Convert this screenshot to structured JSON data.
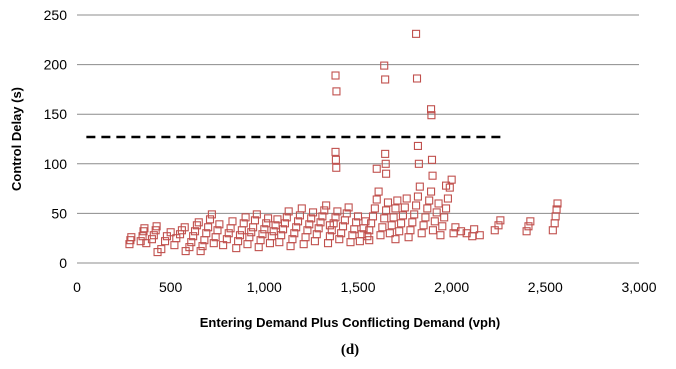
{
  "chart_data": {
    "type": "scatter",
    "xlabel": "Entering  Demand Plus Conflicting Demand (vph)",
    "ylabel": "Control Delay (s)",
    "panel_label": "(d)",
    "xlim": [
      0,
      3000
    ],
    "ylim": [
      0,
      250
    ],
    "x_ticks": [
      0,
      500,
      1000,
      1500,
      2000,
      2500,
      3000
    ],
    "x_tick_labels": [
      "0",
      "500",
      "1,000",
      "1,500",
      "2,000",
      "2,500",
      "3,000"
    ],
    "y_ticks": [
      0,
      50,
      100,
      150,
      200,
      250
    ],
    "y_tick_labels": [
      "0",
      "50",
      "100",
      "150",
      "200",
      "250"
    ],
    "grid": "horizontal",
    "marker": "open-square",
    "marker_color": "#c0504d",
    "threshold_line": {
      "y": 127,
      "x_start": 50,
      "x_end": 2260,
      "color": "#000000",
      "style": "dashed"
    },
    "points": [
      [
        280,
        19
      ],
      [
        285,
        23
      ],
      [
        290,
        26
      ],
      [
        340,
        22
      ],
      [
        350,
        27
      ],
      [
        355,
        32
      ],
      [
        360,
        35
      ],
      [
        370,
        20
      ],
      [
        400,
        24
      ],
      [
        410,
        28
      ],
      [
        420,
        33
      ],
      [
        425,
        37
      ],
      [
        430,
        11
      ],
      [
        450,
        14
      ],
      [
        470,
        22
      ],
      [
        480,
        27
      ],
      [
        500,
        31
      ],
      [
        520,
        18
      ],
      [
        530,
        25
      ],
      [
        550,
        29
      ],
      [
        560,
        33
      ],
      [
        575,
        36
      ],
      [
        580,
        12
      ],
      [
        600,
        16
      ],
      [
        610,
        21
      ],
      [
        620,
        27
      ],
      [
        630,
        32
      ],
      [
        640,
        38
      ],
      [
        650,
        41
      ],
      [
        660,
        12
      ],
      [
        670,
        17
      ],
      [
        680,
        23
      ],
      [
        690,
        30
      ],
      [
        700,
        36
      ],
      [
        710,
        44
      ],
      [
        720,
        49
      ],
      [
        730,
        20
      ],
      [
        740,
        26
      ],
      [
        750,
        33
      ],
      [
        760,
        39
      ],
      [
        780,
        18
      ],
      [
        800,
        24
      ],
      [
        810,
        30
      ],
      [
        820,
        35
      ],
      [
        830,
        42
      ],
      [
        850,
        15
      ],
      [
        860,
        22
      ],
      [
        870,
        28
      ],
      [
        880,
        33
      ],
      [
        890,
        40
      ],
      [
        900,
        46
      ],
      [
        910,
        19
      ],
      [
        920,
        26
      ],
      [
        930,
        31
      ],
      [
        940,
        36
      ],
      [
        950,
        43
      ],
      [
        960,
        49
      ],
      [
        970,
        16
      ],
      [
        980,
        23
      ],
      [
        990,
        29
      ],
      [
        1000,
        34
      ],
      [
        1010,
        40
      ],
      [
        1020,
        45
      ],
      [
        1030,
        20
      ],
      [
        1040,
        27
      ],
      [
        1050,
        32
      ],
      [
        1060,
        38
      ],
      [
        1070,
        44
      ],
      [
        1080,
        21
      ],
      [
        1090,
        28
      ],
      [
        1100,
        34
      ],
      [
        1110,
        40
      ],
      [
        1120,
        46
      ],
      [
        1130,
        52
      ],
      [
        1140,
        17
      ],
      [
        1150,
        24
      ],
      [
        1160,
        30
      ],
      [
        1170,
        36
      ],
      [
        1180,
        42
      ],
      [
        1190,
        48
      ],
      [
        1200,
        55
      ],
      [
        1210,
        19
      ],
      [
        1220,
        26
      ],
      [
        1230,
        33
      ],
      [
        1240,
        39
      ],
      [
        1250,
        45
      ],
      [
        1260,
        51
      ],
      [
        1270,
        22
      ],
      [
        1280,
        29
      ],
      [
        1290,
        35
      ],
      [
        1300,
        41
      ],
      [
        1310,
        47
      ],
      [
        1320,
        53
      ],
      [
        1330,
        58
      ],
      [
        1340,
        20
      ],
      [
        1350,
        27
      ],
      [
        1360,
        33
      ],
      [
        1370,
        40
      ],
      [
        1380,
        46
      ],
      [
        1390,
        52
      ],
      [
        1400,
        24
      ],
      [
        1410,
        30
      ],
      [
        1420,
        37
      ],
      [
        1430,
        43
      ],
      [
        1440,
        50
      ],
      [
        1450,
        56
      ],
      [
        1460,
        21
      ],
      [
        1470,
        28
      ],
      [
        1480,
        34
      ],
      [
        1490,
        41
      ],
      [
        1500,
        47
      ],
      [
        1510,
        22
      ],
      [
        1520,
        29
      ],
      [
        1530,
        35
      ],
      [
        1540,
        42
      ],
      [
        1550,
        27
      ],
      [
        1560,
        33
      ],
      [
        1570,
        40
      ],
      [
        1580,
        47
      ],
      [
        1590,
        55
      ],
      [
        1600,
        64
      ],
      [
        1610,
        72
      ],
      [
        1620,
        28
      ],
      [
        1630,
        36
      ],
      [
        1640,
        45
      ],
      [
        1650,
        53
      ],
      [
        1660,
        61
      ],
      [
        1670,
        30
      ],
      [
        1680,
        38
      ],
      [
        1690,
        46
      ],
      [
        1700,
        55
      ],
      [
        1710,
        63
      ],
      [
        1720,
        32
      ],
      [
        1730,
        40
      ],
      [
        1740,
        48
      ],
      [
        1750,
        56
      ],
      [
        1760,
        65
      ],
      [
        1770,
        26
      ],
      [
        1780,
        33
      ],
      [
        1790,
        41
      ],
      [
        1800,
        49
      ],
      [
        1810,
        58
      ],
      [
        1820,
        67
      ],
      [
        1830,
        77
      ],
      [
        1840,
        30
      ],
      [
        1850,
        38
      ],
      [
        1860,
        46
      ],
      [
        1870,
        55
      ],
      [
        1880,
        63
      ],
      [
        1890,
        72
      ],
      [
        1900,
        33
      ],
      [
        1910,
        42
      ],
      [
        1920,
        51
      ],
      [
        1930,
        60
      ],
      [
        1940,
        28
      ],
      [
        1950,
        37
      ],
      [
        1960,
        46
      ],
      [
        1970,
        55
      ],
      [
        1980,
        65
      ],
      [
        1990,
        76
      ],
      [
        2000,
        84
      ],
      [
        2010,
        30
      ],
      [
        2020,
        36
      ],
      [
        2050,
        32
      ],
      [
        2080,
        30
      ],
      [
        2120,
        34
      ],
      [
        2150,
        28
      ],
      [
        2230,
        33
      ],
      [
        2250,
        38
      ],
      [
        2260,
        43
      ],
      [
        2400,
        32
      ],
      [
        2410,
        37
      ],
      [
        2420,
        42
      ],
      [
        2540,
        33
      ],
      [
        2550,
        40
      ],
      [
        2555,
        47
      ],
      [
        2560,
        54
      ],
      [
        2565,
        60
      ],
      [
        1380,
        189
      ],
      [
        1385,
        173
      ],
      [
        1380,
        112
      ],
      [
        1382,
        104
      ],
      [
        1384,
        96
      ],
      [
        1640,
        199
      ],
      [
        1645,
        185
      ],
      [
        1645,
        110
      ],
      [
        1648,
        100
      ],
      [
        1650,
        90
      ],
      [
        1810,
        231
      ],
      [
        1815,
        186
      ],
      [
        1820,
        118
      ],
      [
        1825,
        100
      ],
      [
        1890,
        155
      ],
      [
        1892,
        149
      ],
      [
        1895,
        104
      ],
      [
        1898,
        88
      ],
      [
        1600,
        95
      ],
      [
        1970,
        78
      ],
      [
        1350,
        38
      ],
      [
        1560,
        23
      ],
      [
        1700,
        24
      ],
      [
        2110,
        27
      ]
    ]
  }
}
